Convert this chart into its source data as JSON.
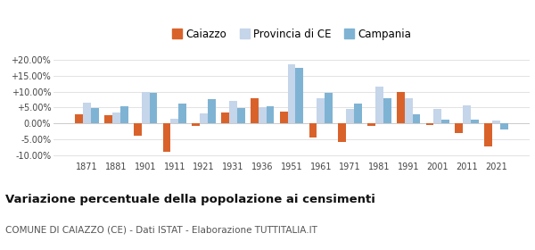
{
  "years": [
    1871,
    1881,
    1901,
    1911,
    1921,
    1931,
    1936,
    1951,
    1961,
    1971,
    1981,
    1991,
    2001,
    2011,
    2021
  ],
  "caiazzo": [
    2.8,
    2.5,
    -3.8,
    -8.8,
    -0.8,
    3.5,
    7.8,
    3.8,
    -4.5,
    -5.8,
    -0.8,
    9.8,
    -0.5,
    -3.0,
    -7.2
  ],
  "provincia_ce": [
    6.5,
    3.5,
    9.8,
    1.5,
    3.2,
    7.2,
    5.2,
    18.5,
    7.8,
    4.5,
    11.5,
    7.8,
    4.5,
    5.8,
    1.0
  ],
  "campania": [
    4.8,
    5.5,
    9.5,
    6.2,
    7.5,
    4.8,
    5.3,
    17.5,
    9.5,
    6.2,
    8.0,
    3.0,
    1.2,
    1.2,
    -2.0
  ],
  "color_caiazzo": "#d9622b",
  "color_provincia": "#c5d5ea",
  "color_campania": "#7fb3d3",
  "title": "Variazione percentuale della popolazione ai censimenti",
  "subtitle": "COMUNE DI CAIAZZO (CE) - Dati ISTAT - Elaborazione TUTTITALIA.IT",
  "ylim": [
    -11.5,
    21.5
  ],
  "yticks": [
    -10,
    -5,
    0,
    5,
    10,
    15,
    20
  ],
  "ytick_labels": [
    "-10.00%",
    "-5.00%",
    "0.00%",
    "+5.00%",
    "+10.00%",
    "+15.00%",
    "+20.00%"
  ],
  "bar_width": 0.27,
  "legend_labels": [
    "Caiazzo",
    "Provincia di CE",
    "Campania"
  ],
  "legend_marker_size": 10,
  "title_fontsize": 9.5,
  "subtitle_fontsize": 7.5,
  "tick_fontsize": 7
}
